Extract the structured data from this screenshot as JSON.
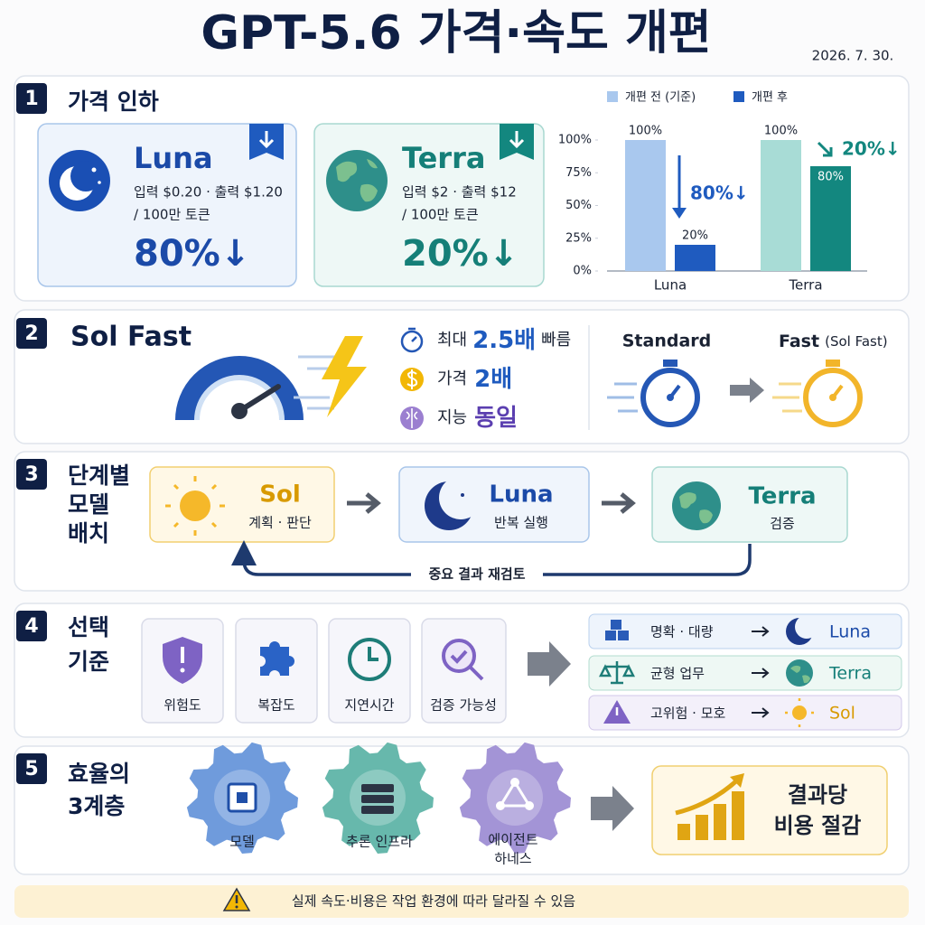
{
  "header": {
    "title": "GPT-5.6 가격·속도 개편",
    "date": "2026. 7. 30."
  },
  "price_cut": {
    "number": "1",
    "title": "가격 인하",
    "cards": [
      {
        "name": "Luna",
        "price": "입력 $0.20 · 출력 $1.20",
        "unit": "/ 100만 토큰",
        "cut": "80%↓"
      },
      {
        "name": "Terra",
        "price": "입력 $2 · 출력 $12",
        "unit": "/ 100만 토큰",
        "cut": "20%↓"
      }
    ]
  },
  "chart_data": {
    "type": "bar",
    "categories": [
      "Luna",
      "Terra"
    ],
    "series": [
      {
        "name": "개편 전 (기준)",
        "color": "#a9c8ee",
        "colors": [
          "#a9c8ee",
          "#a8dcd6"
        ],
        "values": [
          100,
          100
        ],
        "value_labels": [
          "100%",
          "100%"
        ]
      },
      {
        "name": "개편 후",
        "color": "#1f5bbf",
        "colors": [
          "#1f5bbf",
          "#13877f"
        ],
        "values": [
          20,
          80
        ],
        "value_labels": [
          "20%",
          "80%"
        ]
      }
    ],
    "ylim": [
      0,
      100
    ],
    "yticks": [
      {
        "value": 0,
        "label": "0%"
      },
      {
        "value": 25,
        "label": "25%"
      },
      {
        "value": 50,
        "label": "50%"
      },
      {
        "value": 75,
        "label": "75%"
      },
      {
        "value": 100,
        "label": "100%"
      }
    ],
    "annotations": [
      "80%↓",
      "20%↓"
    ]
  },
  "sol_fast": {
    "number": "2",
    "title": "Sol Fast",
    "features": [
      {
        "label": "최대",
        "value": "2.5배",
        "suffix": "빠름"
      },
      {
        "label": "가격",
        "value": "2배"
      },
      {
        "label": "지능",
        "value": "동일"
      }
    ],
    "standard": "Standard",
    "fast": "Fast",
    "fast_note": "(Sol Fast)"
  },
  "pipeline": {
    "number": "3",
    "title": [
      "단계별",
      "모델",
      "배치"
    ],
    "stages": [
      {
        "name": "Sol",
        "role": "계획 · 판단"
      },
      {
        "name": "Luna",
        "role": "반복 실행"
      },
      {
        "name": "Terra",
        "role": "검증"
      }
    ],
    "loop": "중요 결과 재검토"
  },
  "selection": {
    "number": "4",
    "title": [
      "선택",
      "기준"
    ],
    "criteria": [
      "위험도",
      "복잡도",
      "지연시간",
      "검증 가능성"
    ],
    "routes": [
      {
        "case": "명확 · 대량",
        "model": "Luna"
      },
      {
        "case": "균형 업무",
        "model": "Terra"
      },
      {
        "case": "고위험 · 모호",
        "model": "Sol"
      }
    ]
  },
  "efficiency": {
    "number": "5",
    "title": [
      "효율의",
      "3계층"
    ],
    "layers": [
      [
        "모델"
      ],
      [
        "추론 인프라"
      ],
      [
        "에이전트",
        "하네스"
      ]
    ],
    "result": [
      "결과당",
      "비용 절감"
    ]
  },
  "note": "실제 속도·비용은 작업 환경에 따라 달라질 수 있음"
}
